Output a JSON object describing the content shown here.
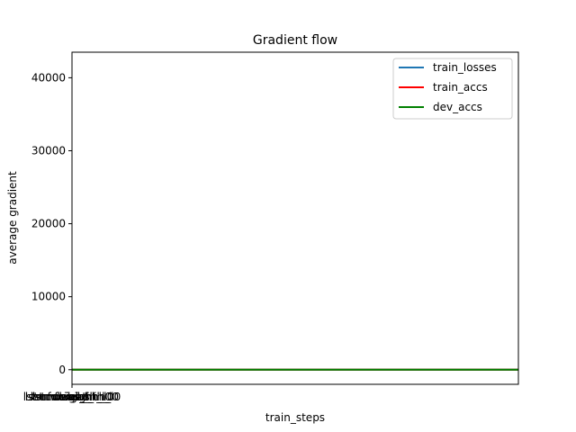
{
  "chart_data": {
    "type": "line",
    "title": "Gradient flow",
    "xlabel": "train_steps",
    "ylabel": "average gradient",
    "ylim": [
      -2000,
      43500
    ],
    "yticks": [
      0,
      10000,
      20000,
      30000,
      40000
    ],
    "ytick_labels": [
      "0",
      "10000",
      "20000",
      "30000",
      "40000"
    ],
    "xtick_labels": [
      "lstm.weight_ih_l0",
      "lstm.weight_hh_l0",
      "lstm.bias_ih_l0",
      "lstm.bias_hh_l0",
      "fc.weight",
      "fc.bias"
    ],
    "grid": false,
    "legend_position": "top-right",
    "series": [
      {
        "name": "train_losses",
        "color": "#1f77b4",
        "values": [
          0,
          0,
          0,
          0,
          0,
          0
        ]
      },
      {
        "name": "train_accs",
        "color": "#ff0000",
        "values": [
          0,
          0,
          0,
          0,
          0,
          0
        ]
      },
      {
        "name": "dev_accs",
        "color": "#008000",
        "values": [
          0,
          0,
          0,
          0,
          0,
          0
        ]
      }
    ]
  }
}
